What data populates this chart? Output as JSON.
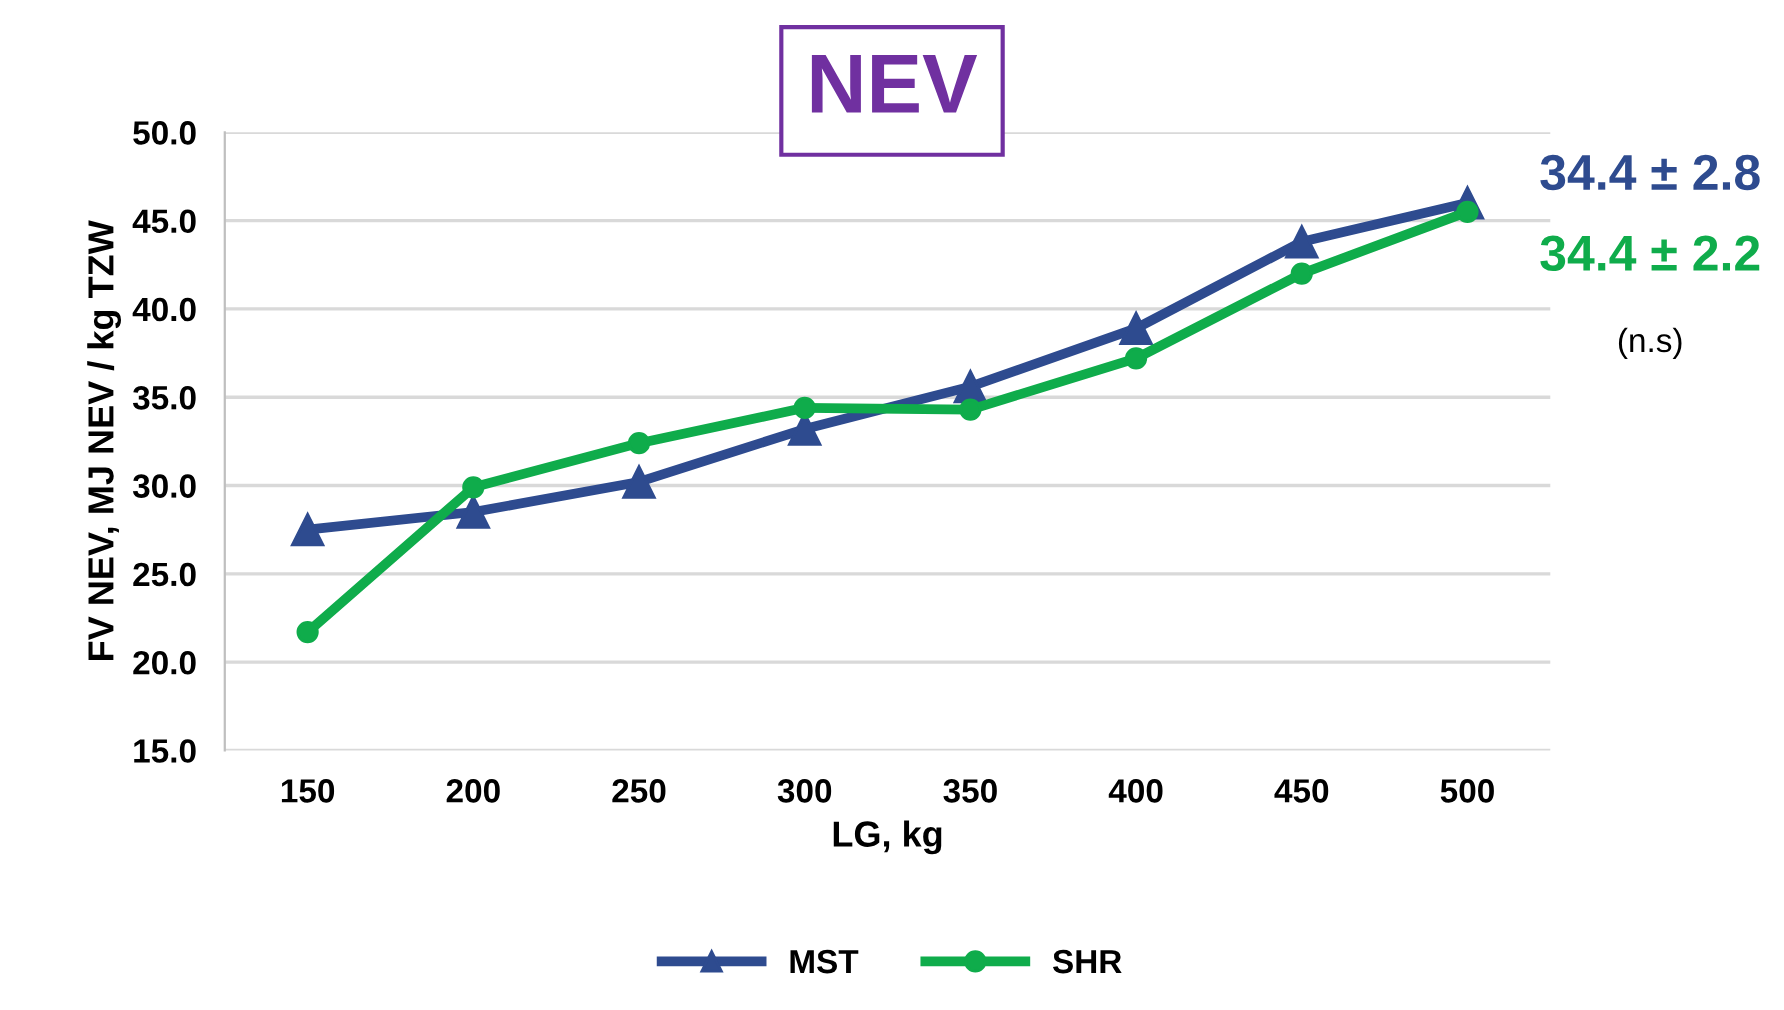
{
  "chart_data": {
    "type": "line",
    "title": "NEV",
    "xlabel": "LG, kg",
    "ylabel": "FV NEV, MJ NEV / kg TZW",
    "categories": [
      "150",
      "200",
      "250",
      "300",
      "350",
      "400",
      "450",
      "500"
    ],
    "series": [
      {
        "name": "MST",
        "color": "#2e4b8f",
        "marker": "triangle",
        "values": [
          27.5,
          28.5,
          30.2,
          33.2,
          35.6,
          38.9,
          43.8,
          46.0
        ]
      },
      {
        "name": "SHR",
        "color": "#0fac4b",
        "marker": "circle",
        "values": [
          21.7,
          29.9,
          32.4,
          34.4,
          34.3,
          37.2,
          42.0,
          45.5
        ]
      }
    ],
    "ylim": [
      15,
      50
    ],
    "yticks": [
      {
        "value": 15,
        "label": "15.0"
      },
      {
        "value": 20,
        "label": "20.0"
      },
      {
        "value": 25,
        "label": "25.0"
      },
      {
        "value": 30,
        "label": "30.0"
      },
      {
        "value": 35,
        "label": "35.0"
      },
      {
        "value": 40,
        "label": "40.0"
      },
      {
        "value": 45,
        "label": "45.0"
      },
      {
        "value": 50,
        "label": "50.0"
      }
    ],
    "grid": "y",
    "legend": "bottom",
    "line_style": "solid",
    "annotations": [
      "34.4 ± 2.8",
      "34.4 ± 2.2",
      "(n.s)"
    ]
  }
}
